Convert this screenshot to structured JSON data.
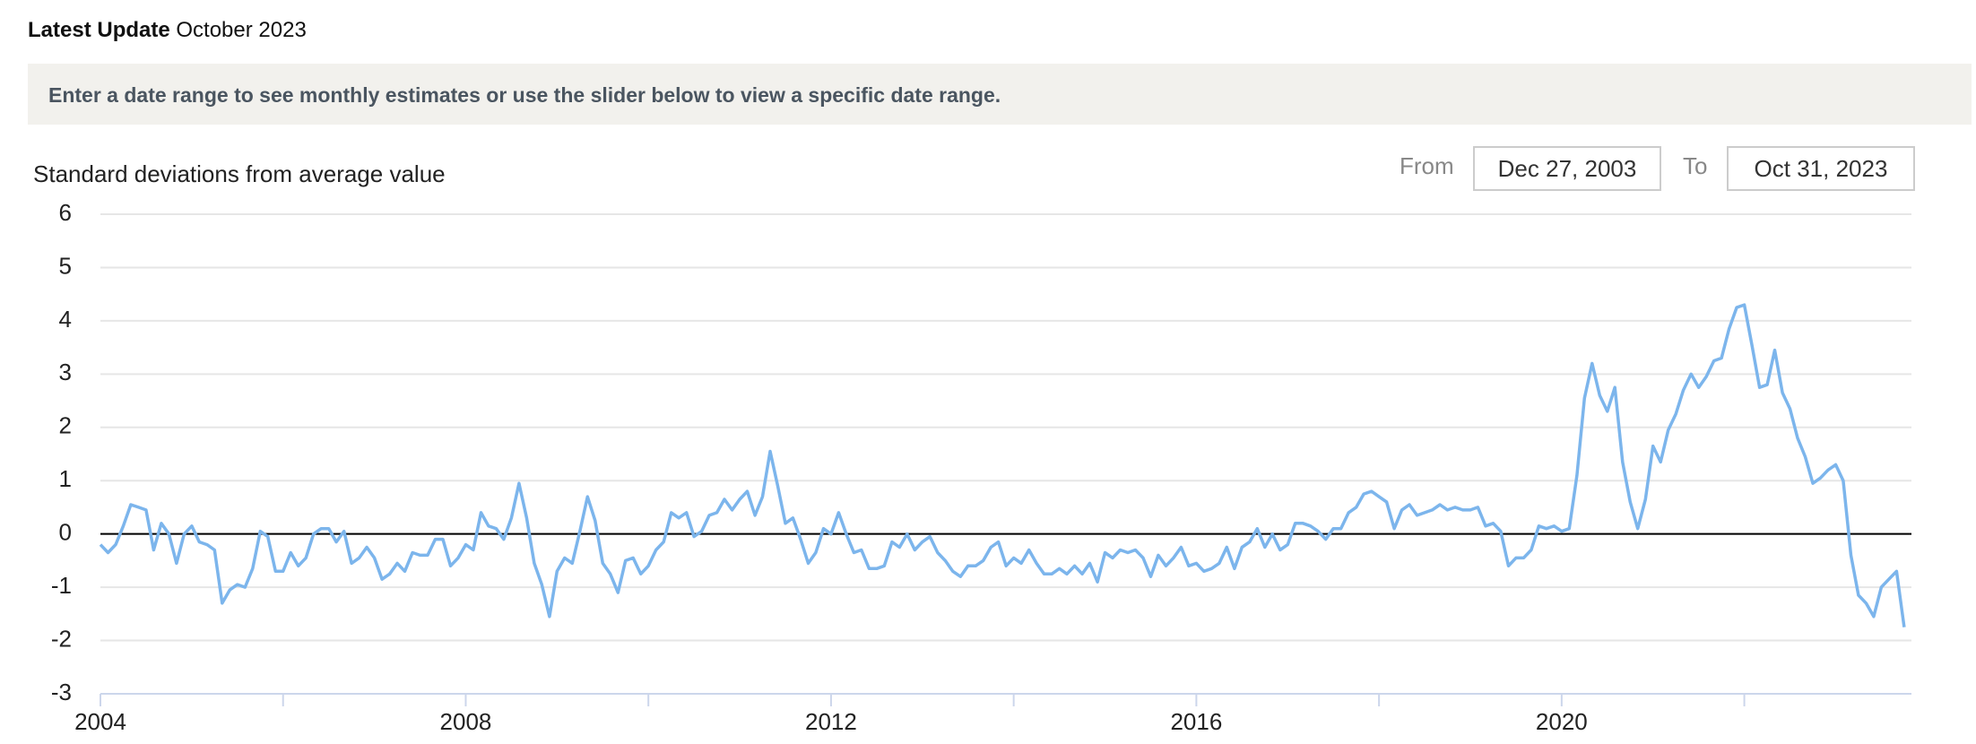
{
  "header": {
    "label": "Latest Update",
    "date": "October 2023"
  },
  "banner": {
    "text": "Enter a date range to see monthly estimates or use the slider below to view a specific date range."
  },
  "controls": {
    "from_label": "From",
    "from_value": "Dec 27, 2003",
    "to_label": "To",
    "to_value": "Oct 31, 2023"
  },
  "chart_data": {
    "type": "line",
    "y_axis_label": "Standard deviations from average value",
    "color": "#7cb5ec",
    "zero_line": true,
    "grid": true,
    "xlim": [
      2004,
      2023.83
    ],
    "xticks": [
      2004,
      2008,
      2012,
      2016,
      2020
    ],
    "xminor_ticks": [
      2006,
      2010,
      2014,
      2018,
      2022
    ],
    "ylim": [
      -3,
      6
    ],
    "yticks": [
      -3,
      -2,
      -1,
      0,
      1,
      2,
      3,
      4,
      5,
      6
    ],
    "x": [
      2004,
      2004.083,
      2004.167,
      2004.25,
      2004.333,
      2004.417,
      2004.5,
      2004.583,
      2004.667,
      2004.75,
      2004.833,
      2004.917,
      2005,
      2005.083,
      2005.167,
      2005.25,
      2005.333,
      2005.417,
      2005.5,
      2005.583,
      2005.667,
      2005.75,
      2005.833,
      2005.917,
      2006,
      2006.083,
      2006.167,
      2006.25,
      2006.333,
      2006.417,
      2006.5,
      2006.583,
      2006.667,
      2006.75,
      2006.833,
      2006.917,
      2007,
      2007.083,
      2007.167,
      2007.25,
      2007.333,
      2007.417,
      2007.5,
      2007.583,
      2007.667,
      2007.75,
      2007.833,
      2007.917,
      2008,
      2008.083,
      2008.167,
      2008.25,
      2008.333,
      2008.417,
      2008.5,
      2008.583,
      2008.667,
      2008.75,
      2008.833,
      2008.917,
      2009,
      2009.083,
      2009.167,
      2009.25,
      2009.333,
      2009.417,
      2009.5,
      2009.583,
      2009.667,
      2009.75,
      2009.833,
      2009.917,
      2010,
      2010.083,
      2010.167,
      2010.25,
      2010.333,
      2010.417,
      2010.5,
      2010.583,
      2010.667,
      2010.75,
      2010.833,
      2010.917,
      2011,
      2011.083,
      2011.167,
      2011.25,
      2011.333,
      2011.417,
      2011.5,
      2011.583,
      2011.667,
      2011.75,
      2011.833,
      2011.917,
      2012,
      2012.083,
      2012.167,
      2012.25,
      2012.333,
      2012.417,
      2012.5,
      2012.583,
      2012.667,
      2012.75,
      2012.833,
      2012.917,
      2013,
      2013.083,
      2013.167,
      2013.25,
      2013.333,
      2013.417,
      2013.5,
      2013.583,
      2013.667,
      2013.75,
      2013.833,
      2013.917,
      2014,
      2014.083,
      2014.167,
      2014.25,
      2014.333,
      2014.417,
      2014.5,
      2014.583,
      2014.667,
      2014.75,
      2014.833,
      2014.917,
      2015,
      2015.083,
      2015.167,
      2015.25,
      2015.333,
      2015.417,
      2015.5,
      2015.583,
      2015.667,
      2015.75,
      2015.833,
      2015.917,
      2016,
      2016.083,
      2016.167,
      2016.25,
      2016.333,
      2016.417,
      2016.5,
      2016.583,
      2016.667,
      2016.75,
      2016.833,
      2016.917,
      2017,
      2017.083,
      2017.167,
      2017.25,
      2017.333,
      2017.417,
      2017.5,
      2017.583,
      2017.667,
      2017.75,
      2017.833,
      2017.917,
      2018,
      2018.083,
      2018.167,
      2018.25,
      2018.333,
      2018.417,
      2018.5,
      2018.583,
      2018.667,
      2018.75,
      2018.833,
      2018.917,
      2019,
      2019.083,
      2019.167,
      2019.25,
      2019.333,
      2019.417,
      2019.5,
      2019.583,
      2019.667,
      2019.75,
      2019.833,
      2019.917,
      2020,
      2020.083,
      2020.167,
      2020.25,
      2020.333,
      2020.417,
      2020.5,
      2020.583,
      2020.667,
      2020.75,
      2020.833,
      2020.917,
      2021,
      2021.083,
      2021.167,
      2021.25,
      2021.333,
      2021.417,
      2021.5,
      2021.583,
      2021.667,
      2021.75,
      2021.833,
      2021.917,
      2022,
      2022.083,
      2022.167,
      2022.25,
      2022.333,
      2022.417,
      2022.5,
      2022.583,
      2022.667,
      2022.75,
      2022.833,
      2022.917,
      2023,
      2023.083,
      2023.167,
      2023.25,
      2023.333,
      2023.417,
      2023.5,
      2023.583,
      2023.667,
      2023.75
    ],
    "values": [
      -0.2,
      -0.35,
      -0.2,
      0.15,
      0.55,
      0.5,
      0.45,
      -0.3,
      0.2,
      0,
      -0.55,
      0,
      0.15,
      -0.15,
      -0.2,
      -0.3,
      -1.3,
      -1.05,
      -0.95,
      -1.0,
      -0.65,
      0.05,
      -0.05,
      -0.7,
      -0.7,
      -0.35,
      -0.6,
      -0.45,
      0.0,
      0.1,
      0.1,
      -0.15,
      0.05,
      -0.55,
      -0.45,
      -0.25,
      -0.45,
      -0.85,
      -0.75,
      -0.55,
      -0.7,
      -0.35,
      -0.4,
      -0.4,
      -0.1,
      -0.1,
      -0.6,
      -0.45,
      -0.2,
      -0.3,
      0.4,
      0.15,
      0.1,
      -0.1,
      0.3,
      0.95,
      0.3,
      -0.55,
      -0.95,
      -1.55,
      -0.7,
      -0.45,
      -0.55,
      0.05,
      0.7,
      0.25,
      -0.55,
      -0.75,
      -1.1,
      -0.5,
      -0.45,
      -0.75,
      -0.6,
      -0.3,
      -0.15,
      0.4,
      0.3,
      0.4,
      -0.05,
      0.05,
      0.35,
      0.4,
      0.65,
      0.45,
      0.65,
      0.8,
      0.35,
      0.7,
      1.55,
      0.9,
      0.2,
      0.3,
      -0.1,
      -0.55,
      -0.35,
      0.1,
      0,
      0.4,
      0.0,
      -0.35,
      -0.3,
      -0.65,
      -0.65,
      -0.6,
      -0.15,
      -0.25,
      0.0,
      -0.3,
      -0.15,
      -0.05,
      -0.35,
      -0.5,
      -0.7,
      -0.8,
      -0.6,
      -0.6,
      -0.5,
      -0.25,
      -0.15,
      -0.6,
      -0.45,
      -0.55,
      -0.3,
      -0.55,
      -0.75,
      -0.75,
      -0.65,
      -0.75,
      -0.6,
      -0.75,
      -0.55,
      -0.9,
      -0.35,
      -0.45,
      -0.3,
      -0.35,
      -0.3,
      -0.45,
      -0.8,
      -0.4,
      -0.6,
      -0.45,
      -0.25,
      -0.6,
      -0.55,
      -0.7,
      -0.65,
      -0.55,
      -0.25,
      -0.65,
      -0.25,
      -0.15,
      0.1,
      -0.25,
      0.0,
      -0.3,
      -0.2,
      0.2,
      0.2,
      0.15,
      0.05,
      -0.1,
      0.1,
      0.1,
      0.4,
      0.5,
      0.75,
      0.8,
      0.7,
      0.6,
      0.1,
      0.45,
      0.55,
      0.35,
      0.4,
      0.45,
      0.55,
      0.45,
      0.5,
      0.45,
      0.45,
      0.5,
      0.15,
      0.2,
      0.05,
      -0.6,
      -0.45,
      -0.45,
      -0.3,
      0.15,
      0.1,
      0.15,
      0.05,
      0.1,
      1.1,
      2.55,
      3.2,
      2.6,
      2.3,
      2.75,
      1.35,
      0.6,
      0.1,
      0.65,
      1.65,
      1.35,
      1.95,
      2.25,
      2.7,
      3.0,
      2.75,
      2.95,
      3.25,
      3.3,
      3.85,
      4.25,
      4.3,
      3.55,
      2.75,
      2.8,
      3.45,
      2.65,
      2.35,
      1.8,
      1.45,
      0.95,
      1.05,
      1.2,
      1.3,
      1.0,
      -0.4,
      -1.15,
      -1.3,
      -1.55,
      -1.0,
      -0.85,
      -0.7,
      -1.75
    ]
  }
}
